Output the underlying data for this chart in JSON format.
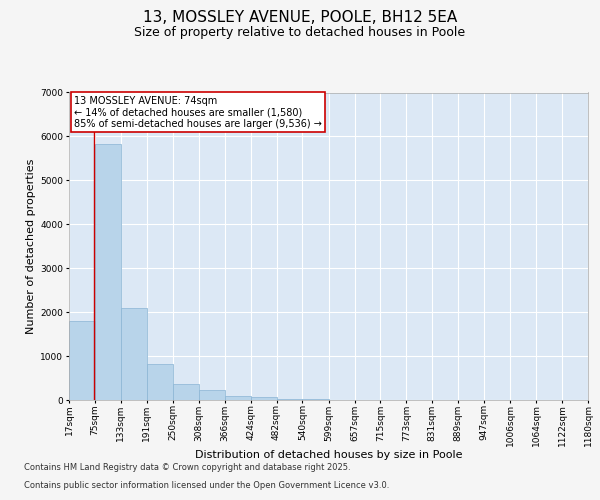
{
  "title": "13, MOSSLEY AVENUE, POOLE, BH12 5EA",
  "subtitle": "Size of property relative to detached houses in Poole",
  "xlabel": "Distribution of detached houses by size in Poole",
  "ylabel": "Number of detached properties",
  "bar_color": "#b8d4ea",
  "bar_edge_color": "#8ab4d4",
  "background_color": "#dce8f5",
  "grid_color": "#ffffff",
  "fig_background": "#f5f5f5",
  "categories": [
    "17sqm",
    "75sqm",
    "133sqm",
    "191sqm",
    "250sqm",
    "308sqm",
    "366sqm",
    "424sqm",
    "482sqm",
    "540sqm",
    "599sqm",
    "657sqm",
    "715sqm",
    "773sqm",
    "831sqm",
    "889sqm",
    "947sqm",
    "1006sqm",
    "1064sqm",
    "1122sqm",
    "1180sqm"
  ],
  "values": [
    1800,
    5820,
    2090,
    830,
    355,
    225,
    100,
    68,
    28,
    18,
    0,
    0,
    0,
    0,
    0,
    0,
    0,
    0,
    0,
    0,
    0
  ],
  "bin_edges": [
    17,
    75,
    133,
    191,
    250,
    308,
    366,
    424,
    482,
    540,
    599,
    657,
    715,
    773,
    831,
    889,
    947,
    1006,
    1064,
    1122,
    1180
  ],
  "ylim": [
    0,
    7000
  ],
  "yticks": [
    0,
    1000,
    2000,
    3000,
    4000,
    5000,
    6000,
    7000
  ],
  "red_line_x": 74,
  "annotation_text": "13 MOSSLEY AVENUE: 74sqm\n← 14% of detached houses are smaller (1,580)\n85% of semi-detached houses are larger (9,536) →",
  "annotation_box_color": "#ffffff",
  "annotation_box_edge": "#cc0000",
  "footer_line1": "Contains HM Land Registry data © Crown copyright and database right 2025.",
  "footer_line2": "Contains public sector information licensed under the Open Government Licence v3.0.",
  "title_fontsize": 11,
  "subtitle_fontsize": 9,
  "tick_fontsize": 6.5,
  "ylabel_fontsize": 8,
  "xlabel_fontsize": 8,
  "annotation_fontsize": 7,
  "footer_fontsize": 6
}
